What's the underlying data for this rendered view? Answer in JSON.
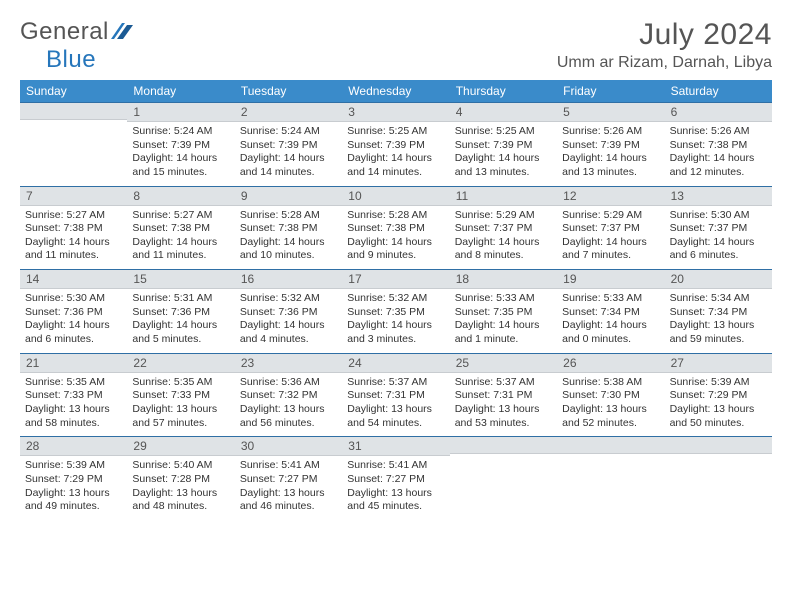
{
  "logo": {
    "part1": "General",
    "part2": "Blue"
  },
  "title": "July 2024",
  "location": "Umm ar Rizam, Darnah, Libya",
  "colors": {
    "header_bg": "#3a8bca",
    "header_border": "#2f6fa5",
    "daynum_bg": "#dfe3e6",
    "text": "#333333",
    "logo_blue": "#2676bb"
  },
  "dayHeaders": [
    "Sunday",
    "Monday",
    "Tuesday",
    "Wednesday",
    "Thursday",
    "Friday",
    "Saturday"
  ],
  "weeks": [
    [
      {
        "n": "",
        "sr": "",
        "ss": "",
        "dl": ""
      },
      {
        "n": "1",
        "sr": "5:24 AM",
        "ss": "7:39 PM",
        "dl": "14 hours and 15 minutes."
      },
      {
        "n": "2",
        "sr": "5:24 AM",
        "ss": "7:39 PM",
        "dl": "14 hours and 14 minutes."
      },
      {
        "n": "3",
        "sr": "5:25 AM",
        "ss": "7:39 PM",
        "dl": "14 hours and 14 minutes."
      },
      {
        "n": "4",
        "sr": "5:25 AM",
        "ss": "7:39 PM",
        "dl": "14 hours and 13 minutes."
      },
      {
        "n": "5",
        "sr": "5:26 AM",
        "ss": "7:39 PM",
        "dl": "14 hours and 13 minutes."
      },
      {
        "n": "6",
        "sr": "5:26 AM",
        "ss": "7:38 PM",
        "dl": "14 hours and 12 minutes."
      }
    ],
    [
      {
        "n": "7",
        "sr": "5:27 AM",
        "ss": "7:38 PM",
        "dl": "14 hours and 11 minutes."
      },
      {
        "n": "8",
        "sr": "5:27 AM",
        "ss": "7:38 PM",
        "dl": "14 hours and 11 minutes."
      },
      {
        "n": "9",
        "sr": "5:28 AM",
        "ss": "7:38 PM",
        "dl": "14 hours and 10 minutes."
      },
      {
        "n": "10",
        "sr": "5:28 AM",
        "ss": "7:38 PM",
        "dl": "14 hours and 9 minutes."
      },
      {
        "n": "11",
        "sr": "5:29 AM",
        "ss": "7:37 PM",
        "dl": "14 hours and 8 minutes."
      },
      {
        "n": "12",
        "sr": "5:29 AM",
        "ss": "7:37 PM",
        "dl": "14 hours and 7 minutes."
      },
      {
        "n": "13",
        "sr": "5:30 AM",
        "ss": "7:37 PM",
        "dl": "14 hours and 6 minutes."
      }
    ],
    [
      {
        "n": "14",
        "sr": "5:30 AM",
        "ss": "7:36 PM",
        "dl": "14 hours and 6 minutes."
      },
      {
        "n": "15",
        "sr": "5:31 AM",
        "ss": "7:36 PM",
        "dl": "14 hours and 5 minutes."
      },
      {
        "n": "16",
        "sr": "5:32 AM",
        "ss": "7:36 PM",
        "dl": "14 hours and 4 minutes."
      },
      {
        "n": "17",
        "sr": "5:32 AM",
        "ss": "7:35 PM",
        "dl": "14 hours and 3 minutes."
      },
      {
        "n": "18",
        "sr": "5:33 AM",
        "ss": "7:35 PM",
        "dl": "14 hours and 1 minute."
      },
      {
        "n": "19",
        "sr": "5:33 AM",
        "ss": "7:34 PM",
        "dl": "14 hours and 0 minutes."
      },
      {
        "n": "20",
        "sr": "5:34 AM",
        "ss": "7:34 PM",
        "dl": "13 hours and 59 minutes."
      }
    ],
    [
      {
        "n": "21",
        "sr": "5:35 AM",
        "ss": "7:33 PM",
        "dl": "13 hours and 58 minutes."
      },
      {
        "n": "22",
        "sr": "5:35 AM",
        "ss": "7:33 PM",
        "dl": "13 hours and 57 minutes."
      },
      {
        "n": "23",
        "sr": "5:36 AM",
        "ss": "7:32 PM",
        "dl": "13 hours and 56 minutes."
      },
      {
        "n": "24",
        "sr": "5:37 AM",
        "ss": "7:31 PM",
        "dl": "13 hours and 54 minutes."
      },
      {
        "n": "25",
        "sr": "5:37 AM",
        "ss": "7:31 PM",
        "dl": "13 hours and 53 minutes."
      },
      {
        "n": "26",
        "sr": "5:38 AM",
        "ss": "7:30 PM",
        "dl": "13 hours and 52 minutes."
      },
      {
        "n": "27",
        "sr": "5:39 AM",
        "ss": "7:29 PM",
        "dl": "13 hours and 50 minutes."
      }
    ],
    [
      {
        "n": "28",
        "sr": "5:39 AM",
        "ss": "7:29 PM",
        "dl": "13 hours and 49 minutes."
      },
      {
        "n": "29",
        "sr": "5:40 AM",
        "ss": "7:28 PM",
        "dl": "13 hours and 48 minutes."
      },
      {
        "n": "30",
        "sr": "5:41 AM",
        "ss": "7:27 PM",
        "dl": "13 hours and 46 minutes."
      },
      {
        "n": "31",
        "sr": "5:41 AM",
        "ss": "7:27 PM",
        "dl": "13 hours and 45 minutes."
      },
      {
        "n": "",
        "sr": "",
        "ss": "",
        "dl": ""
      },
      {
        "n": "",
        "sr": "",
        "ss": "",
        "dl": ""
      },
      {
        "n": "",
        "sr": "",
        "ss": "",
        "dl": ""
      }
    ]
  ],
  "labels": {
    "sunrise": "Sunrise: ",
    "sunset": "Sunset: ",
    "daylight": "Daylight: "
  }
}
